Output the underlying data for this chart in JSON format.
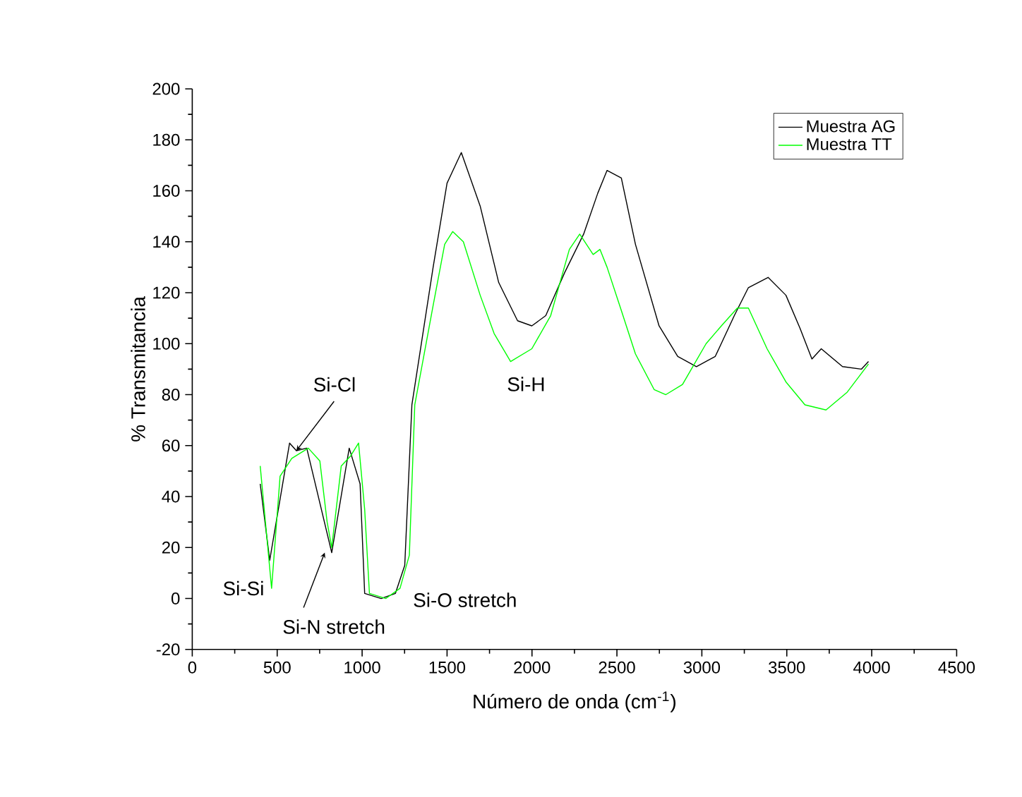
{
  "chart_data": {
    "type": "line",
    "xlabel": "Número de onda (cm$^{-1}$)",
    "ylabel": "% Transmitancia",
    "xlim": [
      0,
      4500
    ],
    "ylim": [
      -20,
      200
    ],
    "xticks": [
      0,
      500,
      1000,
      1500,
      2000,
      2500,
      3000,
      3500,
      4000,
      4500
    ],
    "yticks": [
      -20,
      0,
      20,
      40,
      60,
      80,
      100,
      120,
      140,
      160,
      180,
      200
    ],
    "legend": "top right",
    "line_style": "solid",
    "grid": false,
    "series": [
      {
        "name": "Muestra AG",
        "color": "#000000",
        "x": [
          400,
          456,
          573,
          613,
          674,
          821,
          924,
          988,
          1015,
          1112,
          1196,
          1251,
          1293,
          1418,
          1500,
          1584,
          1695,
          1804,
          1915,
          1999,
          2081,
          2193,
          2304,
          2387,
          2442,
          2526,
          2609,
          2748,
          2858,
          2968,
          3079,
          3191,
          3274,
          3390,
          3495,
          3578,
          3648,
          3703,
          3828,
          3939,
          3981
        ],
        "values": [
          45,
          15,
          61,
          58,
          59,
          18,
          59,
          45,
          2,
          0,
          2,
          13,
          76,
          130,
          163,
          175,
          154,
          124,
          109,
          107,
          111,
          128,
          143,
          159,
          168,
          165,
          139,
          107,
          95,
          91,
          95,
          111,
          122,
          126,
          119,
          106,
          94,
          98,
          91,
          90,
          93
        ]
      },
      {
        "name": "Muestra TT",
        "color": "#00ff00",
        "x": [
          400,
          467,
          517,
          586,
          683,
          751,
          794,
          821,
          877,
          933,
          979,
          1015,
          1043,
          1140,
          1223,
          1278,
          1310,
          1418,
          1486,
          1533,
          1596,
          1695,
          1777,
          1874,
          1999,
          2110,
          2220,
          2281,
          2360,
          2400,
          2442,
          2526,
          2609,
          2719,
          2788,
          2886,
          3025,
          3115,
          3209,
          3274,
          3384,
          3495,
          3607,
          3731,
          3856,
          3981
        ],
        "values": [
          52,
          4,
          48,
          55,
          59,
          54,
          30,
          20,
          52,
          56,
          61,
          35,
          2,
          0,
          4,
          17,
          76,
          115,
          139,
          144,
          140,
          119,
          104,
          93,
          98,
          111,
          137,
          143,
          135,
          137,
          130,
          113,
          96,
          82,
          80,
          84,
          100,
          107,
          114,
          114,
          98,
          85,
          76,
          74,
          81,
          92
        ]
      }
    ],
    "annotations": [
      {
        "text": "Si-Cl",
        "x": 613,
        "y": 58
      },
      {
        "text": "Si-Si",
        "x": 467,
        "y": 4
      },
      {
        "text": "Si-N stretch",
        "x": 780,
        "y": 18
      },
      {
        "text": "Si-O stretch",
        "x": 1140,
        "y": 0
      },
      {
        "text": "Si-H",
        "x": 1874,
        "y": 93
      }
    ]
  }
}
